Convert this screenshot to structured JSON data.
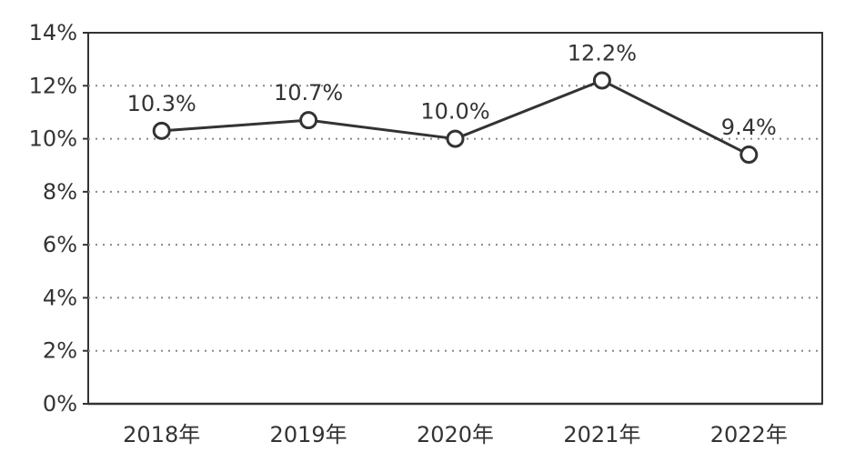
{
  "chart_data": {
    "type": "line",
    "title": "",
    "xlabel": "",
    "ylabel": "",
    "categories": [
      "2018年",
      "2019年",
      "2020年",
      "2021年",
      "2022年"
    ],
    "series": [
      {
        "values": [
          10.3,
          10.7,
          10.0,
          12.2,
          9.4
        ]
      }
    ],
    "data_labels": [
      "10.3%",
      "10.7%",
      "10.0%",
      "12.2%",
      "9.4%"
    ],
    "ylim": [
      0,
      14
    ],
    "y_ticks": [
      0,
      2,
      4,
      6,
      8,
      10,
      12,
      14
    ],
    "y_tick_labels": [
      "0%",
      "2%",
      "4%",
      "6%",
      "8%",
      "10%",
      "12%",
      "14%"
    ],
    "grid": "horizontal dotted",
    "legend": "none",
    "colors": {
      "line": "#333333",
      "marker_fill": "#ffffff",
      "grid": "#888888",
      "text": "#333333"
    }
  }
}
